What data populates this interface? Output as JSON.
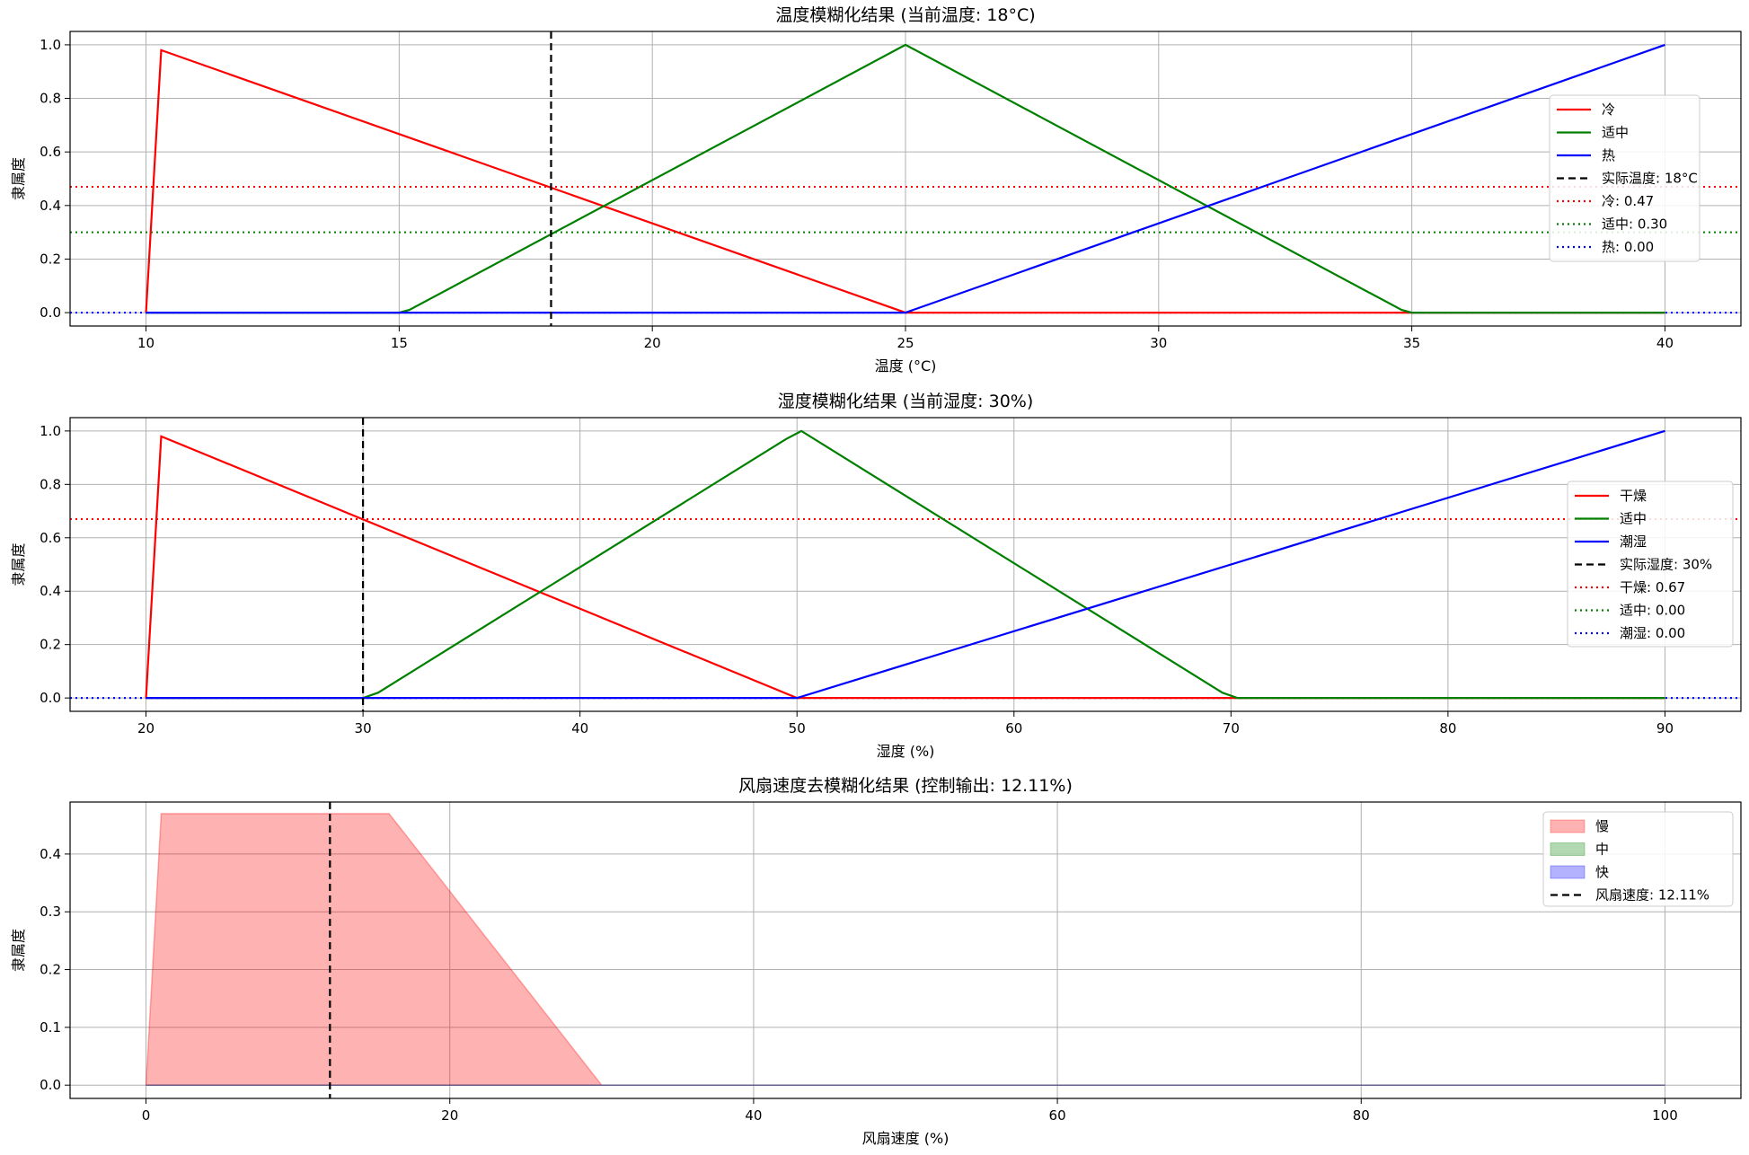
{
  "chart_data": [
    {
      "type": "line",
      "title": "温度模糊化结果 (当前温度: 18°C)",
      "xlabel": "温度 (°C)",
      "ylabel": "隶属度",
      "xlim": [
        8.5,
        41.5
      ],
      "ylim": [
        -0.05,
        1.05
      ],
      "xticks": [
        10,
        15,
        20,
        25,
        30,
        35,
        40
      ],
      "xtick_labels": [
        "10",
        "15",
        "20",
        "25",
        "30",
        "35",
        "40"
      ],
      "yticks": [
        0.0,
        0.2,
        0.4,
        0.6,
        0.8,
        1.0
      ],
      "ytick_labels": [
        "0.0",
        "0.2",
        "0.4",
        "0.6",
        "0.8",
        "1.0"
      ],
      "grid": true,
      "legend_position": "center-right",
      "series": [
        {
          "name": "冷",
          "color": "#ff0000",
          "style": "solid",
          "x": [
            10,
            10.3,
            25,
            40
          ],
          "y": [
            0,
            0.98,
            0,
            0
          ]
        },
        {
          "name": "适中",
          "color": "#008000",
          "style": "solid",
          "x": [
            10,
            15,
            15.2,
            25,
            34.8,
            35,
            40
          ],
          "y": [
            0,
            0,
            0.01,
            1,
            0.01,
            0,
            0
          ]
        },
        {
          "name": "热",
          "color": "#0000ff",
          "style": "solid",
          "x": [
            10,
            25,
            40
          ],
          "y": [
            0,
            0,
            1
          ]
        }
      ],
      "vlines": [
        {
          "name": "实际温度: 18°C",
          "x": 18,
          "color": "#000000",
          "style": "dashed"
        }
      ],
      "hlines": [
        {
          "name": "冷: 0.47",
          "y": 0.47,
          "color": "#ff0000",
          "style": "dotted"
        },
        {
          "name": "适中: 0.30",
          "y": 0.3,
          "color": "#008000",
          "style": "dotted"
        },
        {
          "name": "热: 0.00",
          "y": 0.0,
          "color": "#0000ff",
          "style": "dotted"
        }
      ]
    },
    {
      "type": "line",
      "title": "湿度模糊化结果 (当前湿度: 30%)",
      "xlabel": "湿度 (%)",
      "ylabel": "隶属度",
      "xlim": [
        16.5,
        93.5
      ],
      "ylim": [
        -0.05,
        1.05
      ],
      "xticks": [
        20,
        30,
        40,
        50,
        60,
        70,
        80,
        90
      ],
      "xtick_labels": [
        "20",
        "30",
        "40",
        "50",
        "60",
        "70",
        "80",
        "90"
      ],
      "yticks": [
        0.0,
        0.2,
        0.4,
        0.6,
        0.8,
        1.0
      ],
      "ytick_labels": [
        "0.0",
        "0.2",
        "0.4",
        "0.6",
        "0.8",
        "1.0"
      ],
      "grid": true,
      "legend_position": "center-right",
      "series": [
        {
          "name": "干燥",
          "color": "#ff0000",
          "style": "solid",
          "x": [
            20,
            20.7,
            50,
            90
          ],
          "y": [
            0,
            0.98,
            0,
            0
          ]
        },
        {
          "name": "适中",
          "color": "#008000",
          "style": "solid",
          "x": [
            20,
            30,
            30.7,
            49.5,
            50.2,
            69.6,
            70.3,
            90
          ],
          "y": [
            0,
            0,
            0.02,
            0.97,
            1,
            0.02,
            0,
            0
          ]
        },
        {
          "name": "潮湿",
          "color": "#0000ff",
          "style": "solid",
          "x": [
            20,
            50,
            90
          ],
          "y": [
            0,
            0,
            1
          ]
        }
      ],
      "vlines": [
        {
          "name": "实际湿度: 30%",
          "x": 30,
          "color": "#000000",
          "style": "dashed"
        }
      ],
      "hlines": [
        {
          "name": "干燥: 0.67",
          "y": 0.67,
          "color": "#ff0000",
          "style": "dotted"
        },
        {
          "name": "适中: 0.00",
          "y": 0.0,
          "color": "#008000",
          "style": "dotted"
        },
        {
          "name": "潮湿: 0.00",
          "y": 0.0,
          "color": "#0000ff",
          "style": "dotted"
        }
      ]
    },
    {
      "type": "area",
      "title": "风扇速度去模糊化结果 (控制输出: 12.11%)",
      "xlabel": "风扇速度 (%)",
      "ylabel": "隶属度",
      "xlim": [
        -5,
        105
      ],
      "ylim": [
        -0.023,
        0.49
      ],
      "xticks": [
        0,
        20,
        40,
        60,
        80,
        100
      ],
      "xtick_labels": [
        "0",
        "20",
        "40",
        "60",
        "80",
        "100"
      ],
      "yticks": [
        0.0,
        0.1,
        0.2,
        0.3,
        0.4
      ],
      "ytick_labels": [
        "0.0",
        "0.1",
        "0.2",
        "0.3",
        "0.4"
      ],
      "grid": true,
      "legend_position": "top-right",
      "series": [
        {
          "name": "慢",
          "color": "#ff0000",
          "opacity": 0.3,
          "x": [
            0,
            1,
            16,
            30,
            100
          ],
          "y": [
            0,
            0.47,
            0.47,
            0,
            0
          ]
        },
        {
          "name": "中",
          "color": "#008000",
          "opacity": 0.3,
          "x": [
            0,
            100
          ],
          "y": [
            0,
            0
          ]
        },
        {
          "name": "快",
          "color": "#0000ff",
          "opacity": 0.3,
          "x": [
            0,
            100
          ],
          "y": [
            0,
            0
          ]
        }
      ],
      "vlines": [
        {
          "name": "风扇速度: 12.11%",
          "x": 12.11,
          "color": "#000000",
          "style": "dashed"
        }
      ],
      "hlines": []
    }
  ]
}
